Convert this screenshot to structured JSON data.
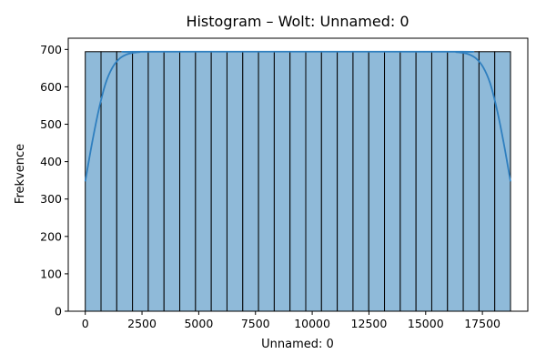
{
  "chart_data": {
    "type": "bar",
    "title": "Histogram – Wolt: Unnamed: 0",
    "xlabel": "Unnamed: 0",
    "ylabel": "Frekvence",
    "xlim": [
      -750,
      19500
    ],
    "ylim": [
      0,
      730
    ],
    "xticks": [
      0,
      2500,
      5000,
      7500,
      10000,
      12500,
      15000,
      17500
    ],
    "xtick_labels": [
      "0",
      "2500",
      "5000",
      "7500",
      "10000",
      "12500",
      "15000",
      "17500"
    ],
    "yticks": [
      0,
      100,
      200,
      300,
      400,
      500,
      600,
      700
    ],
    "ytick_labels": [
      "0",
      "100",
      "200",
      "300",
      "400",
      "500",
      "600",
      "700"
    ],
    "bin_edges": [
      0,
      694,
      1388,
      2082,
      2776,
      3470,
      4164,
      4858,
      5552,
      6246,
      6940,
      7634,
      8328,
      9022,
      9716,
      10410,
      11104,
      11798,
      12492,
      13186,
      13880,
      14574,
      15268,
      15962,
      16656,
      17350,
      18044,
      18738
    ],
    "values": [
      694,
      694,
      694,
      694,
      694,
      694,
      694,
      694,
      694,
      694,
      694,
      694,
      694,
      694,
      694,
      694,
      694,
      694,
      694,
      694,
      694,
      694,
      694,
      694,
      694,
      694,
      694
    ],
    "kde": {
      "x": [
        0,
        300,
        600,
        900,
        1200,
        1500,
        1800,
        2100,
        2400,
        2700,
        16038,
        16338,
        16638,
        16938,
        17238,
        17538,
        17838,
        18138,
        18438,
        18738
      ],
      "y": [
        347,
        450,
        540,
        610,
        652,
        675,
        686,
        691,
        693,
        694,
        694,
        693,
        691,
        686,
        675,
        652,
        610,
        540,
        450,
        347
      ]
    },
    "colors": {
      "bar_fill": "#8fbad9",
      "bar_edge": "#000000",
      "kde_line": "#2f7fbf"
    },
    "grid": false,
    "legend": "none"
  }
}
